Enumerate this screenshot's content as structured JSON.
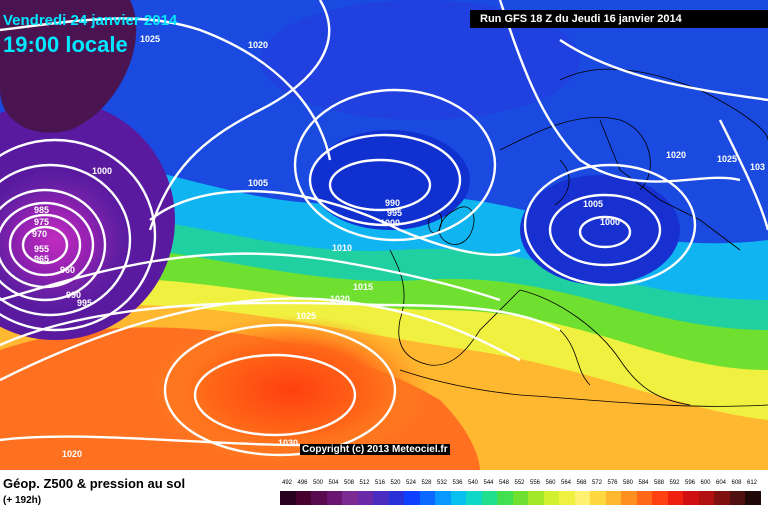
{
  "header": {
    "date": "Vendredi 24 janvier 2014",
    "time": "19:00 locale",
    "run": "Run GFS 18 Z du Jeudi 16 janvier 2014"
  },
  "copyright": "Copyright (c) 2013 Meteociel.fr",
  "footer": {
    "title": "Géop. Z500 & pression au sol",
    "subtitle": "(+ 192h)"
  },
  "isobar_labels": [
    "1025",
    "1020",
    "1000",
    "1005",
    "990",
    "995",
    "1000",
    "1010",
    "1015",
    "1020",
    "1025",
    "1030",
    "1020",
    "1005",
    "1000",
    "1020",
    "1025",
    "103",
    "985",
    "975",
    "970",
    "960",
    "955",
    "965",
    "995",
    "990"
  ],
  "scale": {
    "values": [
      "492",
      "496",
      "500",
      "504",
      "508",
      "512",
      "516",
      "520",
      "524",
      "528",
      "532",
      "536",
      "540",
      "544",
      "548",
      "552",
      "556",
      "560",
      "564",
      "568",
      "572",
      "576",
      "580",
      "584",
      "588",
      "592",
      "596",
      "600",
      "604",
      "608",
      "612"
    ],
    "colors": [
      "#2a0020",
      "#45002e",
      "#5a0a4e",
      "#6a1670",
      "#7a2a90",
      "#6a2aa8",
      "#4a2cc0",
      "#2830d8",
      "#1040ff",
      "#0a6aff",
      "#0898ff",
      "#08c0f0",
      "#10d8c8",
      "#20e090",
      "#40e050",
      "#70e030",
      "#a0e828",
      "#d0f030",
      "#f0f040",
      "#fff070",
      "#ffd840",
      "#ffb830",
      "#ff9020",
      "#ff6818",
      "#ff4010",
      "#f02010",
      "#d01010",
      "#b01010",
      "#801010",
      "#501010",
      "#200808"
    ]
  },
  "colors": {
    "isobar": "#ffffff",
    "label_text": "#ffffff",
    "coast": "#000000"
  }
}
